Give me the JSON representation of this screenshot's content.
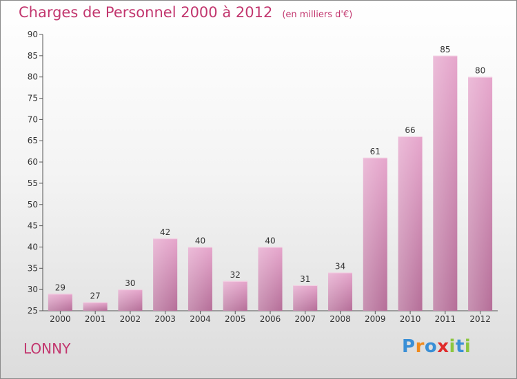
{
  "title": "Charges de Personnel 2000 à 2012",
  "unit": "(en milliers d'€)",
  "commune": "LONNY",
  "logo": {
    "letters": [
      "P",
      "r",
      "o",
      "x",
      "i",
      "t",
      "i"
    ],
    "colors": [
      "#3a8fd6",
      "#f08a1c",
      "#3a8fd6",
      "#e02b2b",
      "#8cc63f",
      "#3a8fd6",
      "#8cc63f"
    ]
  },
  "colors": {
    "bar": "#d98ab6",
    "bar_dark": "#b06a93",
    "title": "#c2366e"
  },
  "chart_data": {
    "type": "bar",
    "title": "Charges de Personnel 2000 à 2012",
    "subtitle": "(en milliers d'€)",
    "categories": [
      "2000",
      "2001",
      "2002",
      "2003",
      "2004",
      "2005",
      "2006",
      "2007",
      "2008",
      "2009",
      "2010",
      "2011",
      "2012"
    ],
    "values": [
      29,
      27,
      30,
      42,
      40,
      32,
      40,
      31,
      34,
      61,
      66,
      85,
      80
    ],
    "ylim": [
      25,
      90
    ],
    "yticks": [
      25,
      30,
      35,
      40,
      45,
      50,
      55,
      60,
      65,
      70,
      75,
      80,
      85,
      90
    ],
    "grid": false,
    "xlabel": "",
    "ylabel": ""
  }
}
